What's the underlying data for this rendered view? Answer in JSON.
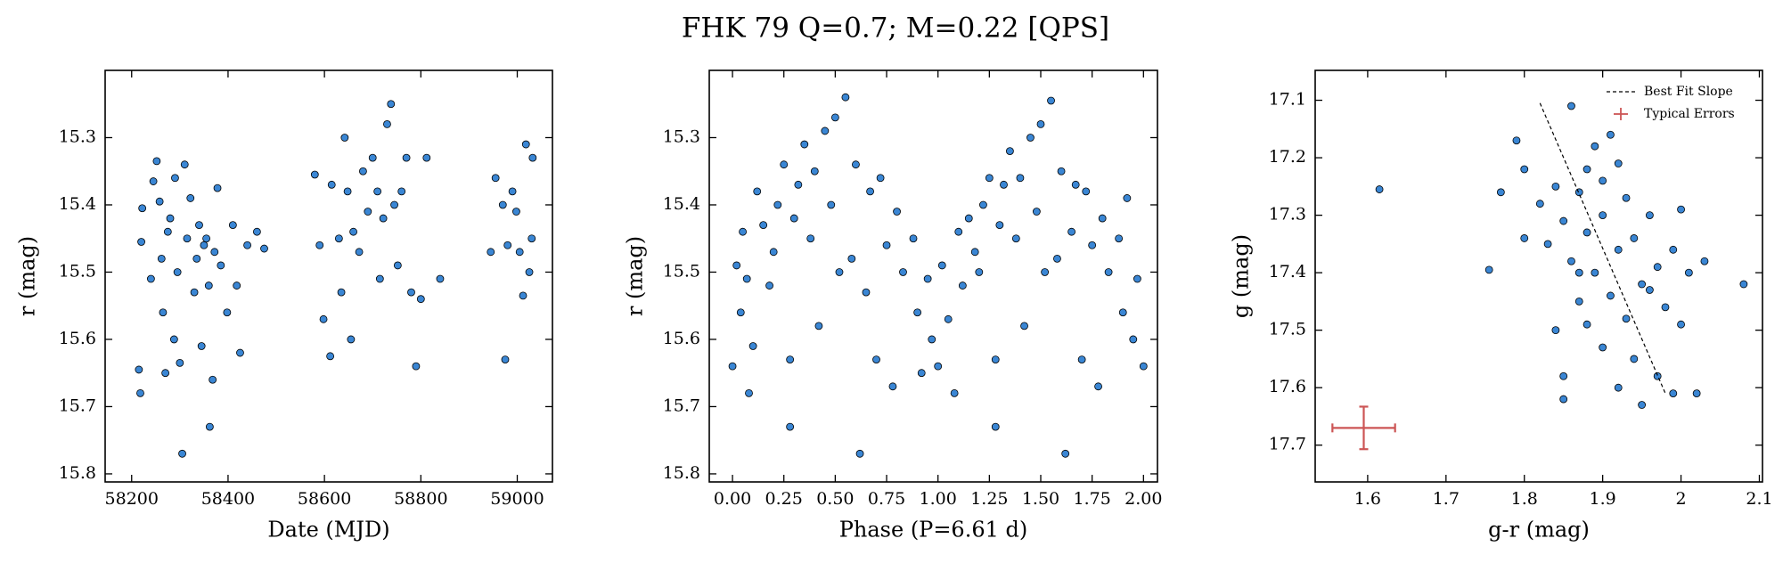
{
  "title": "FHK 79  Q=0.7; M=0.22 [QPS]",
  "chart_data": [
    {
      "type": "scatter",
      "xlabel": "Date (MJD)",
      "ylabel": "r (mag)",
      "color": "#3a86d4",
      "edgecolor": "#000000",
      "xlim": [
        58145,
        59073
      ],
      "ylim": [
        15.812,
        15.2
      ],
      "xticks": [
        58200,
        58400,
        58600,
        58800,
        59000
      ],
      "yticks": [
        15.3,
        15.4,
        15.5,
        15.6,
        15.7,
        15.8
      ],
      "x": [
        58215,
        58218,
        58222,
        58220,
        58240,
        58245,
        58252,
        58258,
        58262,
        58265,
        58270,
        58275,
        58280,
        58288,
        58290,
        58295,
        58300,
        58305,
        58310,
        58315,
        58322,
        58330,
        58335,
        58340,
        58345,
        58350,
        58355,
        58360,
        58362,
        58368,
        58372,
        58378,
        58385,
        58398,
        58410,
        58418,
        58425,
        58440,
        58460,
        58475,
        58580,
        58590,
        58598,
        58612,
        58615,
        58630,
        58635,
        58642,
        58648,
        58655,
        58660,
        58672,
        58680,
        58690,
        58700,
        58710,
        58715,
        58722,
        58730,
        58738,
        58745,
        58752,
        58760,
        58770,
        58780,
        58790,
        58800,
        58812,
        58840,
        58945,
        58955,
        58970,
        58975,
        58980,
        58990,
        58998,
        59005,
        59012,
        59018,
        59025,
        59032,
        59030
      ],
      "values": [
        15.645,
        15.68,
        15.405,
        15.455,
        15.51,
        15.365,
        15.335,
        15.395,
        15.48,
        15.56,
        15.65,
        15.44,
        15.42,
        15.6,
        15.36,
        15.5,
        15.635,
        15.77,
        15.34,
        15.45,
        15.39,
        15.53,
        15.48,
        15.43,
        15.61,
        15.46,
        15.45,
        15.52,
        15.73,
        15.66,
        15.47,
        15.375,
        15.49,
        15.56,
        15.43,
        15.52,
        15.62,
        15.46,
        15.44,
        15.465,
        15.355,
        15.46,
        15.57,
        15.625,
        15.37,
        15.45,
        15.53,
        15.3,
        15.38,
        15.6,
        15.44,
        15.47,
        15.35,
        15.41,
        15.33,
        15.38,
        15.51,
        15.42,
        15.28,
        15.25,
        15.4,
        15.49,
        15.38,
        15.33,
        15.53,
        15.64,
        15.54,
        15.33,
        15.51,
        15.47,
        15.36,
        15.4,
        15.63,
        15.46,
        15.38,
        15.41,
        15.47,
        15.535,
        15.31,
        15.5,
        15.33,
        15.45
      ]
    },
    {
      "type": "scatter",
      "xlabel": "Phase (P=6.61 d)",
      "ylabel": "r (mag)",
      "color": "#3a86d4",
      "edgecolor": "#000000",
      "xlim": [
        -0.113,
        2.068
      ],
      "ylim": [
        15.812,
        15.2
      ],
      "xticks": [
        {
          "value": 0,
          "label": "0.00"
        },
        {
          "value": 0.25,
          "label": "0.25"
        },
        {
          "value": 0.5,
          "label": "0.50"
        },
        {
          "value": 0.75,
          "label": "0.75"
        },
        {
          "value": 1,
          "label": "1.00"
        },
        {
          "value": 1.25,
          "label": "1.25"
        },
        {
          "value": 1.5,
          "label": "1.50"
        },
        {
          "value": 1.75,
          "label": "1.75"
        },
        {
          "value": 2,
          "label": "2.00"
        }
      ],
      "yticks": [
        15.3,
        15.4,
        15.5,
        15.6,
        15.7,
        15.8
      ],
      "x": [
        0,
        0.02,
        0.04,
        0.05,
        0.07,
        0.08,
        0.1,
        0.12,
        0.15,
        0.18,
        0.2,
        0.22,
        0.25,
        0.28,
        0.28,
        0.3,
        0.32,
        0.35,
        0.38,
        0.4,
        0.42,
        0.45,
        0.48,
        0.5,
        0.52,
        0.55,
        0.58,
        0.6,
        0.62,
        0.65,
        0.67,
        0.7,
        0.72,
        0.75,
        0.78,
        0.8,
        0.83,
        0.88,
        0.9,
        0.92,
        0.95,
        0.97,
        1,
        1.02,
        1.05,
        1.08,
        1.1,
        1.12,
        1.15,
        1.18,
        1.2,
        1.22,
        1.25,
        1.28,
        1.28,
        1.3,
        1.32,
        1.35,
        1.38,
        1.4,
        1.42,
        1.45,
        1.48,
        1.5,
        1.52,
        1.55,
        1.58,
        1.6,
        1.62,
        1.65,
        1.67,
        1.7,
        1.72,
        1.75,
        1.78,
        1.8,
        1.83,
        1.88,
        1.9,
        1.92,
        1.95,
        1.97,
        2
      ],
      "values": [
        15.64,
        15.49,
        15.56,
        15.44,
        15.51,
        15.68,
        15.61,
        15.38,
        15.43,
        15.52,
        15.47,
        15.4,
        15.34,
        15.63,
        15.73,
        15.42,
        15.37,
        15.31,
        15.45,
        15.35,
        15.58,
        15.29,
        15.4,
        15.27,
        15.5,
        15.24,
        15.48,
        15.34,
        15.77,
        15.53,
        15.38,
        15.63,
        15.36,
        15.46,
        15.67,
        15.41,
        15.5,
        15.45,
        15.56,
        15.65,
        15.51,
        15.6,
        15.64,
        15.49,
        15.57,
        15.68,
        15.44,
        15.52,
        15.42,
        15.47,
        15.5,
        15.4,
        15.36,
        15.63,
        15.73,
        15.43,
        15.37,
        15.32,
        15.45,
        15.36,
        15.58,
        15.3,
        15.41,
        15.28,
        15.5,
        15.245,
        15.48,
        15.35,
        15.77,
        15.44,
        15.37,
        15.63,
        15.38,
        15.46,
        15.67,
        15.42,
        15.5,
        15.45,
        15.56,
        15.39,
        15.6,
        15.51,
        15.64
      ]
    },
    {
      "type": "scatter",
      "xlabel": "g-r (mag)",
      "ylabel": "g (mag)",
      "color": "#3a86d4",
      "edgecolor": "#000000",
      "xlim": [
        1.533,
        2.104
      ],
      "ylim": [
        17.764,
        17.048
      ],
      "xticks": [
        1.6,
        1.7,
        1.8,
        1.9,
        2.0,
        2.1
      ],
      "yticks": [
        17.1,
        17.2,
        17.3,
        17.4,
        17.5,
        17.6,
        17.7
      ],
      "x": [
        1.615,
        1.755,
        1.77,
        1.79,
        1.8,
        1.8,
        1.82,
        1.83,
        1.84,
        1.85,
        1.85,
        1.85,
        1.86,
        1.86,
        1.87,
        1.87,
        1.88,
        1.88,
        1.89,
        1.89,
        1.9,
        1.9,
        1.9,
        1.91,
        1.91,
        1.92,
        1.92,
        1.93,
        1.93,
        1.94,
        1.94,
        1.95,
        1.95,
        1.96,
        1.97,
        1.97,
        1.98,
        1.99,
        1.99,
        2.0,
        2.0,
        2.01,
        2.02,
        2.03,
        2.08,
        1.84,
        1.88,
        1.92,
        1.96,
        1.87
      ],
      "values": [
        17.255,
        17.395,
        17.26,
        17.17,
        17.22,
        17.34,
        17.28,
        17.35,
        17.5,
        17.58,
        17.62,
        17.31,
        17.11,
        17.38,
        17.45,
        17.26,
        17.49,
        17.33,
        17.18,
        17.4,
        17.24,
        17.3,
        17.53,
        17.16,
        17.44,
        17.36,
        17.6,
        17.27,
        17.48,
        17.34,
        17.55,
        17.42,
        17.63,
        17.3,
        17.39,
        17.58,
        17.46,
        17.36,
        17.61,
        17.29,
        17.49,
        17.4,
        17.61,
        17.38,
        17.42,
        17.25,
        17.22,
        17.21,
        17.43,
        17.4
      ],
      "fit_line": {
        "name": "Best Fit Slope",
        "color": "#000000",
        "x": [
          1.82,
          1.98
        ],
        "y": [
          17.105,
          17.61
        ]
      },
      "typical_error": {
        "name": "Typical Errors",
        "color": "#cc5555",
        "x": 1.595,
        "y": 17.67,
        "xerr": 0.04,
        "yerr": 0.037
      },
      "legend": "upper right"
    }
  ]
}
